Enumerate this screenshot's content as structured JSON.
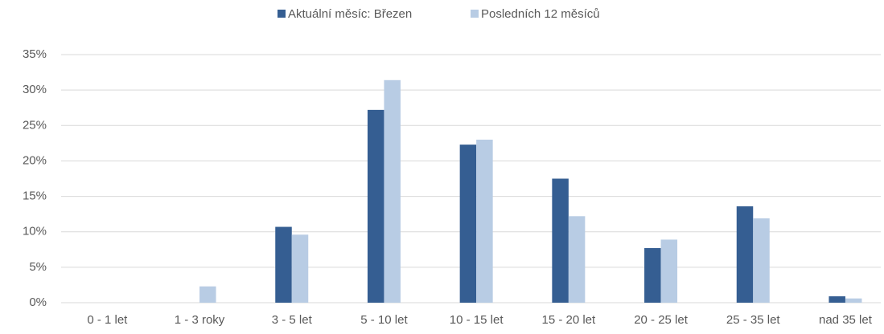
{
  "chart_data": {
    "type": "bar",
    "categories": [
      "0 - 1 let",
      "1 - 3 roky",
      "3 - 5 let",
      "5 - 10 let",
      "10 - 15 let",
      "15 - 20 let",
      "20 - 25 let",
      "25 - 35 let",
      "nad 35 let"
    ],
    "series": [
      {
        "name": "Aktuální měsíc: Březen",
        "color": "#355e92",
        "values": [
          0,
          0,
          10.7,
          27.2,
          22.3,
          17.5,
          7.7,
          13.6,
          0.9
        ]
      },
      {
        "name": "Posledních 12 měsíců",
        "color": "#b8cce4",
        "values": [
          0,
          2.3,
          9.6,
          31.4,
          23.0,
          12.2,
          8.9,
          11.9,
          0.6
        ]
      }
    ],
    "ylim": [
      0,
      35
    ],
    "yticks": [
      {
        "value": 0,
        "label": "0%"
      },
      {
        "value": 5,
        "label": "5%"
      },
      {
        "value": 10,
        "label": "10%"
      },
      {
        "value": 15,
        "label": "15%"
      },
      {
        "value": 20,
        "label": "20%"
      },
      {
        "value": 25,
        "label": "25%"
      },
      {
        "value": 30,
        "label": "30%"
      },
      {
        "value": 35,
        "label": "35%"
      }
    ],
    "grid": true,
    "legend": "top"
  }
}
